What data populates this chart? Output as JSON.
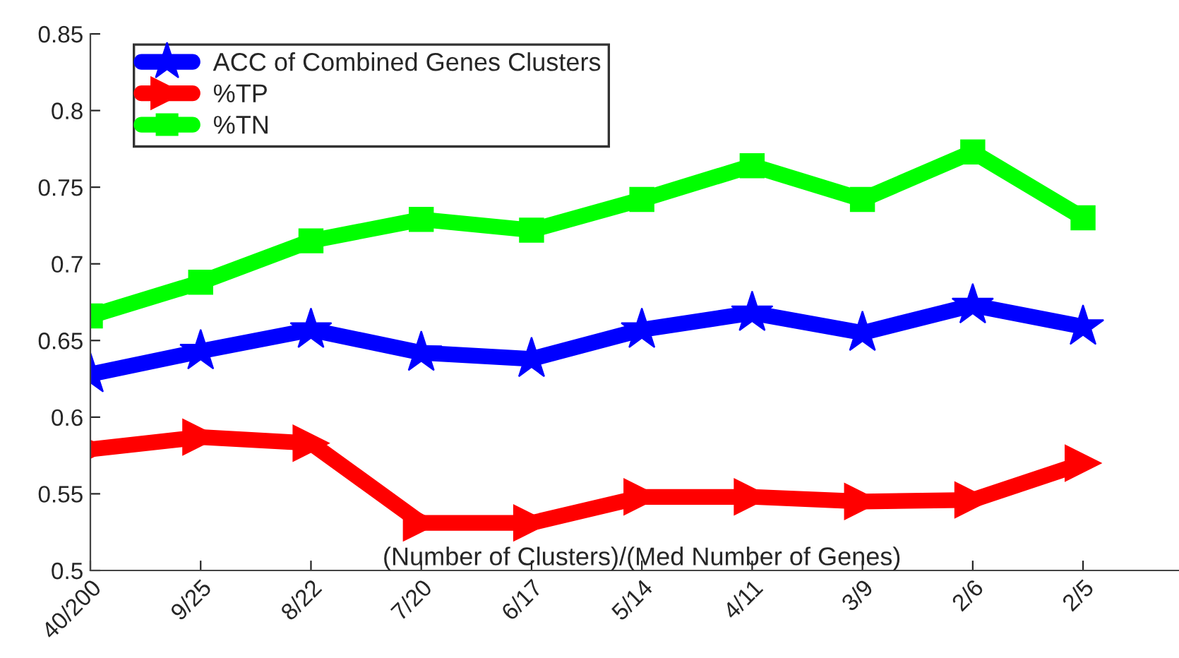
{
  "chart_data": {
    "type": "line",
    "xlabel": "(Number of Clusters)/(Med Number of Genes)",
    "categories": [
      "40/200",
      "9/25",
      "8/22",
      "7/20",
      "6/17",
      "5/14",
      "4/11",
      "3/9",
      "2/6",
      "2/5"
    ],
    "series": [
      {
        "name": "ACC of Combined Genes Clusters",
        "color": "#0000ff",
        "marker": "star",
        "values": [
          0.628,
          0.643,
          0.657,
          0.642,
          0.638,
          0.657,
          0.668,
          0.655,
          0.673,
          0.659
        ]
      },
      {
        "name": "%TP",
        "color": "#ff0000",
        "marker": "triangle",
        "values": [
          0.579,
          0.587,
          0.583,
          0.531,
          0.531,
          0.548,
          0.548,
          0.545,
          0.546,
          0.57
        ]
      },
      {
        "name": "%TN",
        "color": "#00ff00",
        "marker": "square",
        "values": [
          0.666,
          0.688,
          0.715,
          0.729,
          0.722,
          0.742,
          0.764,
          0.742,
          0.773,
          0.73
        ]
      }
    ],
    "ylim": [
      0.5,
      0.85
    ],
    "yticks": [
      0.5,
      0.55,
      0.6,
      0.65,
      0.7,
      0.75,
      0.8,
      0.85
    ],
    "grid": false,
    "legend": "top left",
    "line_style": "solid"
  }
}
